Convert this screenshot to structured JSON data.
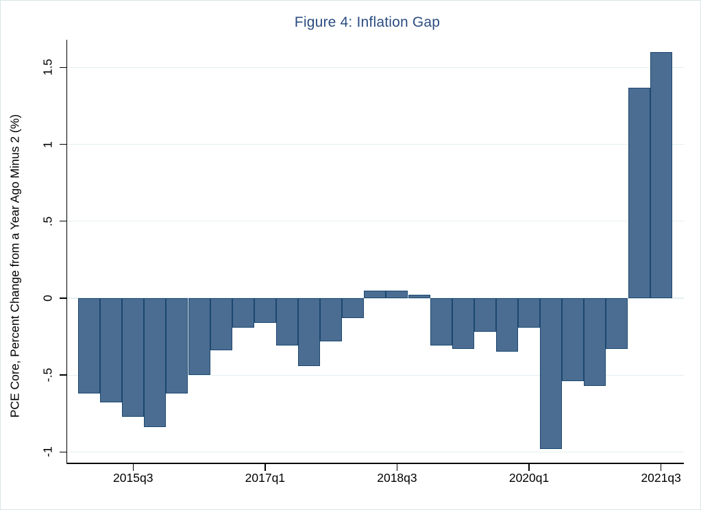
{
  "figure": {
    "background": "#ffffff",
    "frame_border_color": "#d9e6e6"
  },
  "chart_data": {
    "type": "bar",
    "title": "Figure 4: Inflation Gap",
    "title_color": "#2b4d80",
    "ylabel": "PCE Core, Percent Change from a Year Ago Minus 2 (%)",
    "xlabel": "",
    "categories": [
      "2015q1",
      "2015q2",
      "2015q3",
      "2015q4",
      "2016q1",
      "2016q2",
      "2016q3",
      "2016q4",
      "2017q1",
      "2017q2",
      "2017q3",
      "2017q4",
      "2018q1",
      "2018q2",
      "2018q3",
      "2018q4",
      "2019q1",
      "2019q2",
      "2019q3",
      "2019q4",
      "2020q1",
      "2020q2",
      "2020q3",
      "2020q4",
      "2021q1",
      "2021q2",
      "2021q3"
    ],
    "values": [
      -0.62,
      -0.68,
      -0.77,
      -0.84,
      -0.62,
      -0.5,
      -0.34,
      -0.19,
      -0.16,
      -0.31,
      -0.44,
      -0.28,
      -0.13,
      0.05,
      0.05,
      0.02,
      -0.31,
      -0.33,
      -0.22,
      -0.35,
      -0.19,
      -0.98,
      -0.54,
      -0.57,
      -0.33,
      1.37,
      1.6
    ],
    "ylim": [
      -1.07,
      1.68
    ],
    "yticks": [
      {
        "value": 1.5,
        "label": "1.5"
      },
      {
        "value": 1,
        "label": "1"
      },
      {
        "value": 0.5,
        "label": ".5"
      },
      {
        "value": 0,
        "label": "0"
      },
      {
        "value": -0.5,
        "label": "-.5"
      },
      {
        "value": -1,
        "label": "-1"
      }
    ],
    "xticks": [
      {
        "index": 2,
        "label": "2015q3"
      },
      {
        "index": 8,
        "label": "2017q1"
      },
      {
        "index": 14,
        "label": "2018q3"
      },
      {
        "index": 20,
        "label": "2020q1"
      },
      {
        "index": 26,
        "label": "2021q3"
      }
    ],
    "bar_color": "#4c6d92",
    "bar_border_color": "#1a476f",
    "grid_color": "#e4eff2",
    "grid": true,
    "legend": "none"
  }
}
